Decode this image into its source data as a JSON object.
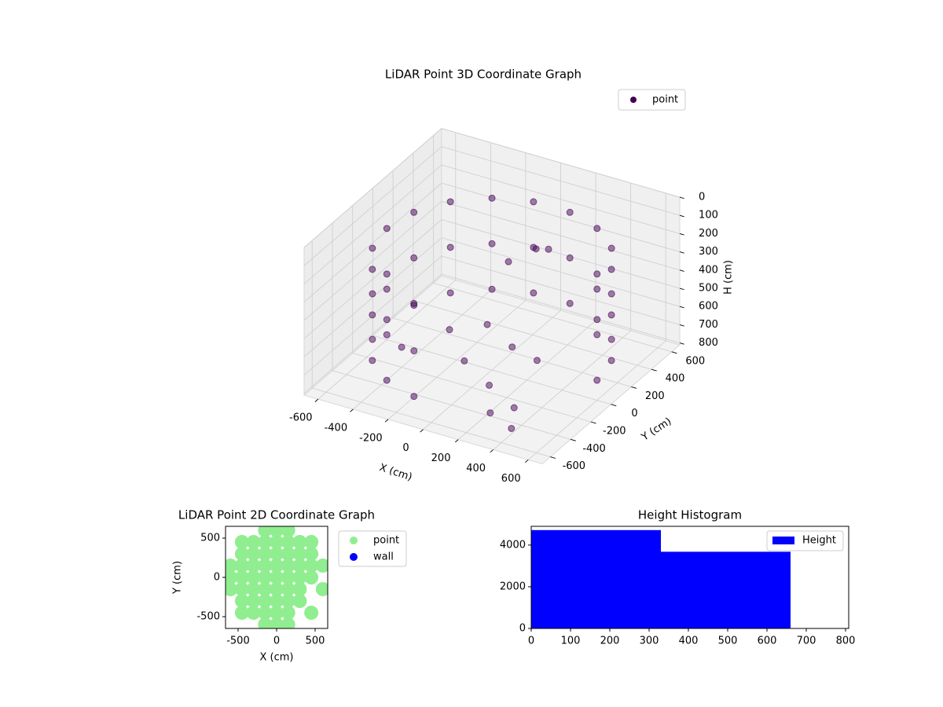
{
  "chart_data": [
    {
      "type": "scatter3d",
      "title": "LiDAR Point 3D Coordinate Graph",
      "x_label": "X (cm)",
      "y_label": "Y (cm)",
      "z_label": "H (cm)",
      "xlim": [
        -680,
        680
      ],
      "ylim": [
        -680,
        680
      ],
      "zlim": [
        810,
        0
      ],
      "xticks": [
        -600,
        -400,
        -200,
        0,
        200,
        400,
        600
      ],
      "yticks": [
        -600,
        -400,
        -200,
        0,
        200,
        400,
        600
      ],
      "zticks": [
        0,
        100,
        200,
        300,
        400,
        500,
        600,
        700,
        800
      ],
      "grid": true,
      "legend": "upper right",
      "series": [
        {
          "name": "point",
          "color": "#440154",
          "x": [
            600,
            564,
            460,
            300,
            104,
            -104,
            -300,
            -460,
            -564,
            -600,
            -564,
            -460,
            -300,
            -104,
            600,
            564,
            460,
            300,
            104,
            -104,
            -300,
            -460,
            -564,
            -600,
            -564,
            -460,
            -300,
            -104,
            600,
            564,
            460,
            300,
            104,
            -104,
            -300,
            -460,
            -564,
            -600,
            -564,
            -460,
            -300,
            -104,
            -300,
            -200,
            0,
            200,
            100,
            -100,
            300,
            400,
            250,
            -400,
            50,
            150,
            -50
          ],
          "y": [
            0,
            205,
            386,
            520,
            591,
            591,
            520,
            386,
            205,
            0,
            -205,
            -386,
            -520,
            -591,
            0,
            205,
            386,
            520,
            591,
            591,
            520,
            386,
            205,
            0,
            -205,
            -386,
            -520,
            -591,
            0,
            205,
            386,
            520,
            591,
            591,
            520,
            386,
            205,
            0,
            -205,
            -386,
            -520,
            -591,
            100,
            300,
            200,
            100,
            -200,
            -100,
            -300,
            -500,
            -450,
            -200,
            350,
            300,
            250
          ],
          "z": [
            200,
            200,
            200,
            200,
            200,
            200,
            200,
            200,
            200,
            200,
            200,
            200,
            200,
            200,
            450,
            450,
            450,
            450,
            450,
            450,
            450,
            450,
            450,
            450,
            450,
            450,
            450,
            450,
            700,
            700,
            700,
            700,
            700,
            700,
            700,
            700,
            700,
            700,
            700,
            700,
            700,
            700,
            720,
            760,
            780,
            750,
            770,
            740,
            790,
            780,
            760,
            700,
            300,
            250,
            350
          ]
        }
      ]
    },
    {
      "type": "scatter",
      "title": "LiDAR Point 2D Coordinate Graph",
      "x_label": "X (cm)",
      "y_label": "Y (cm)",
      "xlim": [
        -663,
        663
      ],
      "ylim": [
        -650,
        650
      ],
      "xticks": [
        -500,
        0,
        500
      ],
      "yticks": [
        -500,
        0,
        500
      ],
      "legend": "outside right",
      "series": [
        {
          "name": "point",
          "color": "#90ee90",
          "x": [
            -600,
            -600,
            -600,
            -450,
            -450,
            -450,
            -450,
            -450,
            -450,
            -450,
            -300,
            -300,
            -300,
            -300,
            -300,
            -300,
            -300,
            -150,
            -150,
            -150,
            -150,
            -150,
            -150,
            -150,
            -150,
            -150,
            0,
            0,
            0,
            0,
            0,
            0,
            0,
            0,
            0,
            150,
            150,
            150,
            150,
            150,
            150,
            150,
            150,
            150,
            300,
            300,
            300,
            300,
            300,
            300,
            450,
            450,
            450,
            450,
            450,
            600,
            600
          ],
          "y": [
            -150,
            0,
            150,
            -450,
            -300,
            -150,
            0,
            150,
            300,
            450,
            -450,
            -300,
            -150,
            0,
            150,
            300,
            450,
            -600,
            -450,
            -300,
            -150,
            0,
            150,
            300,
            450,
            600,
            -600,
            -450,
            -300,
            -150,
            0,
            150,
            300,
            450,
            600,
            -600,
            -450,
            -300,
            -150,
            0,
            150,
            300,
            450,
            600,
            -300,
            -150,
            0,
            150,
            300,
            450,
            -450,
            0,
            150,
            300,
            450,
            -150,
            150
          ]
        },
        {
          "name": "wall",
          "color": "#0000ff",
          "x": [],
          "y": []
        }
      ]
    },
    {
      "type": "histogram",
      "title": "Height Histogram",
      "xlim": [
        0,
        808
      ],
      "ylim": [
        0,
        4900
      ],
      "xticks": [
        0,
        100,
        200,
        300,
        400,
        500,
        600,
        700,
        800
      ],
      "yticks": [
        0,
        2000,
        4000
      ],
      "legend": "upper right",
      "series": [
        {
          "name": "Height",
          "color": "#0000ff",
          "bins": [
            0,
            330,
            660
          ],
          "values": [
            4720,
            3680
          ]
        }
      ]
    }
  ]
}
